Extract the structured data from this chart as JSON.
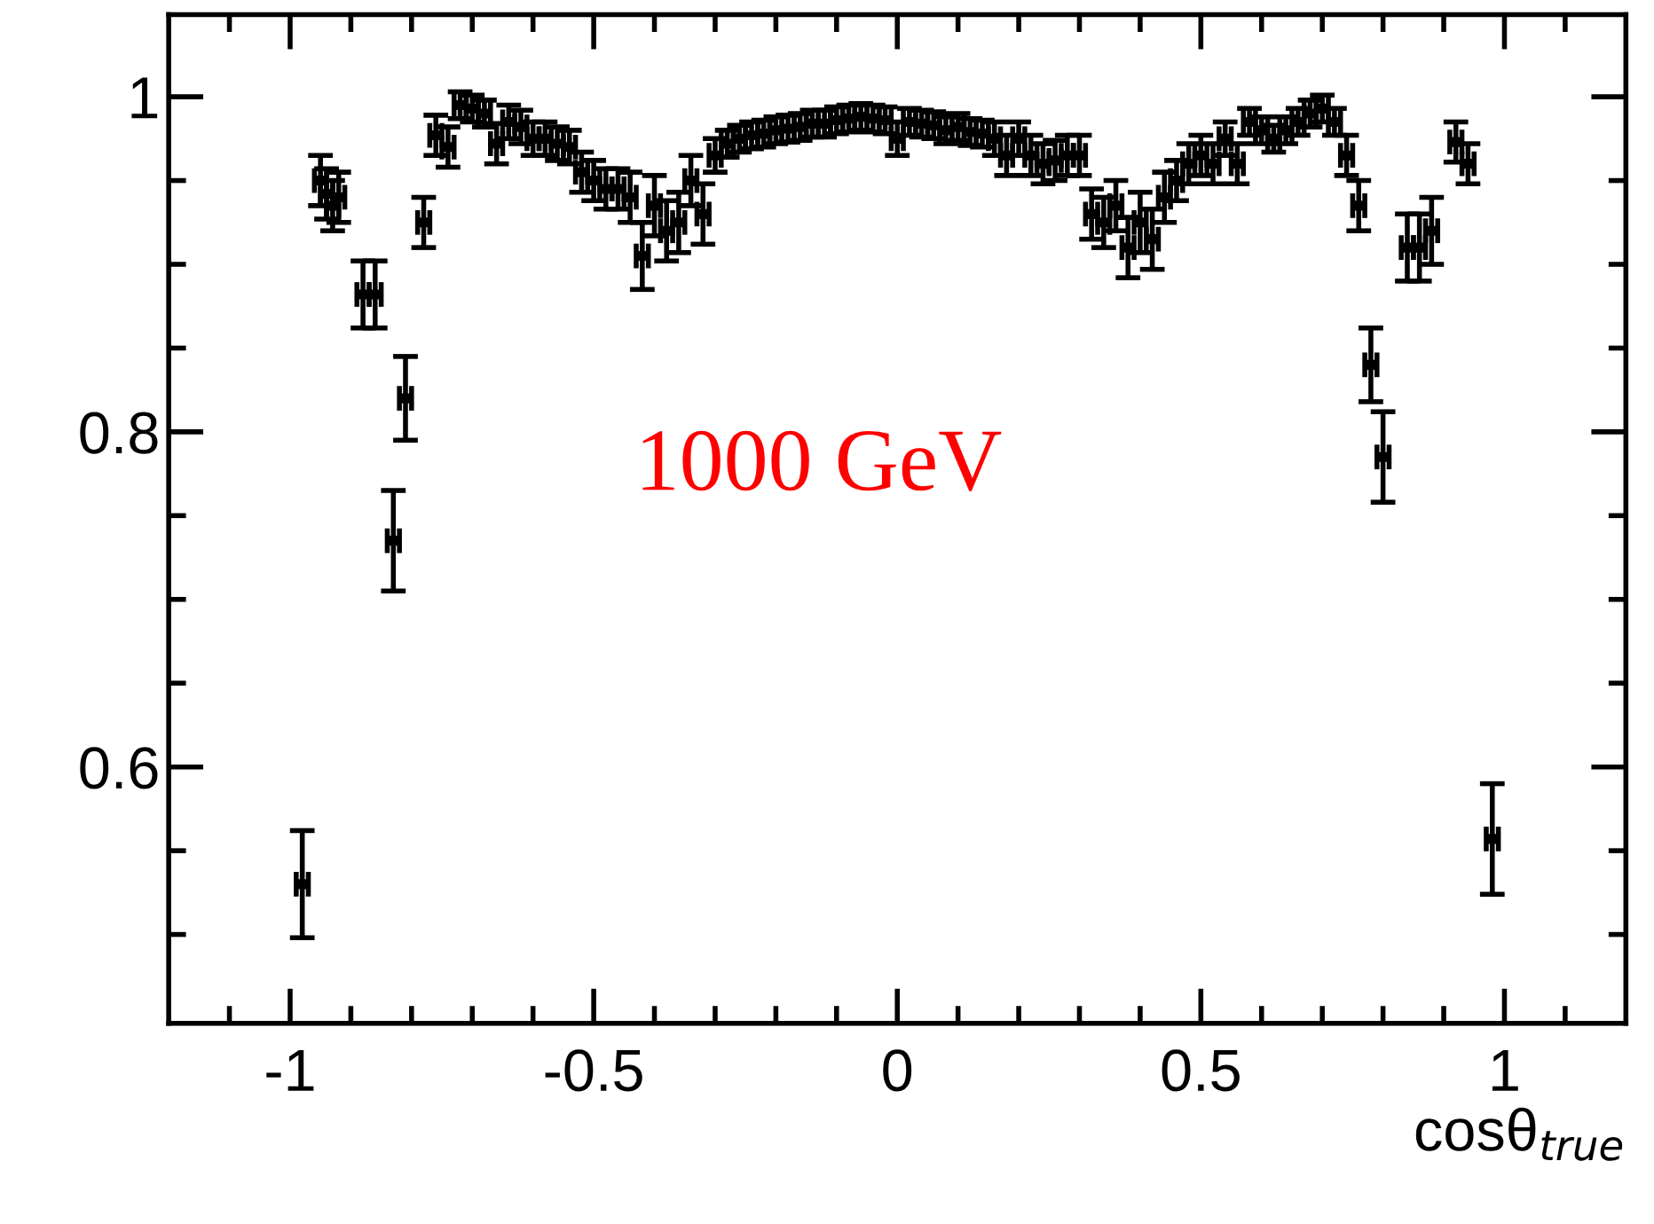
{
  "chart_data": {
    "type": "scatter",
    "xlabel": "cosθ$_{true}$",
    "annotations": [
      "1000 GeV"
    ],
    "x": [
      -0.98,
      -0.95,
      -0.94,
      -0.93,
      -0.92,
      -0.88,
      -0.86,
      -0.83,
      -0.81,
      -0.78,
      -0.76,
      -0.74,
      -0.72,
      -0.7,
      -0.68,
      -0.66,
      -0.64,
      -0.62,
      -0.6,
      -0.58,
      -0.56,
      -0.54,
      -0.52,
      -0.5,
      -0.48,
      -0.46,
      -0.44,
      -0.42,
      -0.4,
      -0.38,
      -0.36,
      -0.34,
      -0.32,
      -0.3,
      -0.28,
      -0.26,
      -0.24,
      -0.22,
      -0.2,
      -0.18,
      -0.16,
      -0.14,
      -0.12,
      -0.1,
      -0.08,
      -0.06,
      -0.04,
      -0.02,
      0.0,
      0.02,
      0.04,
      0.06,
      0.08,
      0.1,
      0.12,
      0.14,
      0.16,
      0.18,
      0.2,
      0.22,
      0.24,
      0.26,
      0.28,
      0.3,
      0.32,
      0.34,
      0.36,
      0.38,
      0.4,
      0.42,
      0.44,
      0.46,
      0.48,
      0.5,
      0.52,
      0.54,
      0.56,
      0.58,
      0.6,
      0.62,
      0.64,
      0.66,
      0.68,
      0.7,
      0.72,
      0.74,
      0.76,
      0.78,
      0.8,
      0.84,
      0.86,
      0.88,
      0.92,
      0.94,
      0.98
    ],
    "values": [
      0.53,
      0.95,
      0.942,
      0.935,
      0.94,
      0.882,
      0.882,
      0.735,
      0.82,
      0.925,
      0.977,
      0.97,
      0.995,
      0.993,
      0.99,
      0.972,
      0.985,
      0.982,
      0.975,
      0.975,
      0.972,
      0.97,
      0.955,
      0.95,
      0.945,
      0.945,
      0.94,
      0.905,
      0.935,
      0.92,
      0.925,
      0.95,
      0.93,
      0.965,
      0.972,
      0.975,
      0.977,
      0.978,
      0.98,
      0.981,
      0.982,
      0.984,
      0.984,
      0.986,
      0.987,
      0.988,
      0.987,
      0.986,
      0.975,
      0.985,
      0.984,
      0.983,
      0.98,
      0.982,
      0.979,
      0.978,
      0.975,
      0.965,
      0.975,
      0.965,
      0.96,
      0.962,
      0.965,
      0.965,
      0.93,
      0.925,
      0.935,
      0.91,
      0.925,
      0.915,
      0.94,
      0.95,
      0.96,
      0.965,
      0.96,
      0.975,
      0.96,
      0.985,
      0.98,
      0.975,
      0.98,
      0.985,
      0.99,
      0.993,
      0.985,
      0.965,
      0.935,
      0.84,
      0.785,
      0.91,
      0.91,
      0.92,
      0.973,
      0.96,
      0.557
    ],
    "errors": [
      0.032,
      0.015,
      0.015,
      0.015,
      0.015,
      0.02,
      0.02,
      0.03,
      0.025,
      0.015,
      0.012,
      0.012,
      0.008,
      0.008,
      0.008,
      0.012,
      0.01,
      0.01,
      0.01,
      0.01,
      0.01,
      0.01,
      0.012,
      0.012,
      0.012,
      0.012,
      0.015,
      0.02,
      0.018,
      0.018,
      0.018,
      0.015,
      0.018,
      0.01,
      0.008,
      0.008,
      0.008,
      0.008,
      0.008,
      0.008,
      0.008,
      0.008,
      0.008,
      0.008,
      0.008,
      0.008,
      0.008,
      0.008,
      0.01,
      0.008,
      0.008,
      0.008,
      0.008,
      0.008,
      0.008,
      0.008,
      0.01,
      0.012,
      0.01,
      0.012,
      0.012,
      0.012,
      0.012,
      0.012,
      0.015,
      0.015,
      0.015,
      0.018,
      0.018,
      0.018,
      0.015,
      0.012,
      0.012,
      0.012,
      0.012,
      0.01,
      0.012,
      0.008,
      0.008,
      0.008,
      0.008,
      0.008,
      0.008,
      0.008,
      0.008,
      0.012,
      0.015,
      0.022,
      0.027,
      0.02,
      0.02,
      0.02,
      0.012,
      0.012,
      0.033
    ],
    "xerrors": [
      0.01,
      0.01,
      0.01,
      0.01,
      0.01,
      0.01,
      0.01,
      0.01,
      0.01,
      0.01,
      0.01,
      0.01,
      0.01,
      0.01,
      0.01,
      0.01,
      0.01,
      0.01,
      0.01,
      0.01,
      0.01,
      0.01,
      0.01,
      0.01,
      0.01,
      0.01,
      0.01,
      0.01,
      0.01,
      0.01,
      0.01,
      0.01,
      0.01,
      0.01,
      0.01,
      0.01,
      0.01,
      0.01,
      0.01,
      0.01,
      0.01,
      0.01,
      0.01,
      0.01,
      0.01,
      0.01,
      0.01,
      0.01,
      0.01,
      0.01,
      0.01,
      0.01,
      0.01,
      0.01,
      0.01,
      0.01,
      0.01,
      0.01,
      0.01,
      0.01,
      0.01,
      0.01,
      0.01,
      0.01,
      0.01,
      0.01,
      0.01,
      0.01,
      0.01,
      0.01,
      0.01,
      0.01,
      0.01,
      0.01,
      0.01,
      0.01,
      0.01,
      0.01,
      0.01,
      0.01,
      0.01,
      0.01,
      0.01,
      0.01,
      0.01,
      0.01,
      0.01,
      0.01,
      0.01,
      0.01,
      0.01,
      0.01,
      0.01,
      0.01,
      0.01
    ],
    "marker": "square",
    "xlim": [
      -1.2,
      1.2
    ],
    "ylim": [
      0.447,
      1.049
    ],
    "xticks": [
      {
        "value": -1.1,
        "label": null
      },
      -1,
      {
        "value": -0.9,
        "label": null
      },
      {
        "value": -0.8,
        "label": null
      },
      {
        "value": -0.7,
        "label": null
      },
      {
        "value": -0.6,
        "label": null
      },
      -0.5,
      {
        "value": -0.4,
        "label": null
      },
      {
        "value": -0.3,
        "label": null
      },
      {
        "value": -0.2,
        "label": null
      },
      {
        "value": -0.1,
        "label": null
      },
      0,
      {
        "value": 0.1,
        "label": null
      },
      {
        "value": 0.2,
        "label": null
      },
      {
        "value": 0.3,
        "label": null
      },
      {
        "value": 0.4,
        "label": null
      },
      0.5,
      {
        "value": 0.6,
        "label": null
      },
      {
        "value": 0.7,
        "label": null
      },
      {
        "value": 0.8,
        "label": null
      },
      {
        "value": 0.9,
        "label": null
      },
      1,
      {
        "value": 1.1,
        "label": null
      }
    ],
    "yticks": [
      {
        "value": 0.5,
        "label": null
      },
      {
        "value": 0.55,
        "label": null
      },
      0.6,
      {
        "value": 0.65,
        "label": null
      },
      {
        "value": 0.7,
        "label": null
      },
      {
        "value": 0.75,
        "label": null
      },
      0.8,
      {
        "value": 0.85,
        "label": null
      },
      {
        "value": 0.9,
        "label": null
      },
      {
        "value": 0.95,
        "label": null
      },
      1
    ],
    "grid": false,
    "legend": false
  }
}
